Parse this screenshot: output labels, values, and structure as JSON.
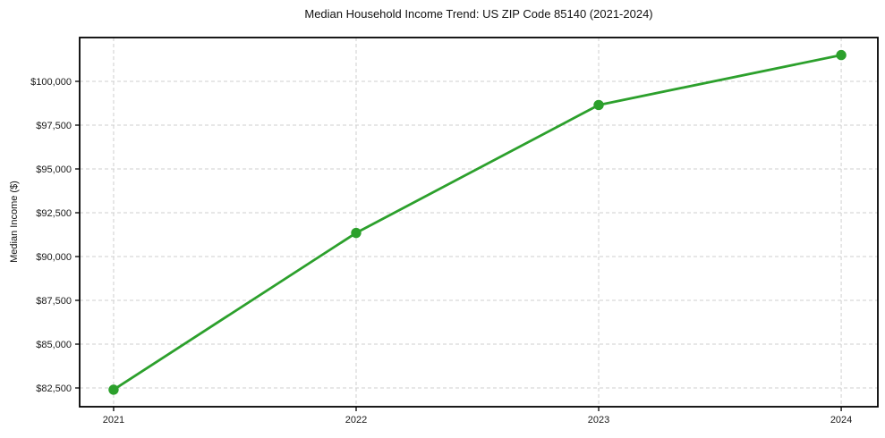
{
  "chart_data": {
    "type": "line",
    "title": "Median Household Income Trend: US ZIP Code 85140 (2021-2024)",
    "xlabel": "",
    "ylabel": "Median Income ($)",
    "x": [
      2021,
      2022,
      2023,
      2024
    ],
    "xtick_labels": [
      "2021",
      "2022",
      "2023",
      "2024"
    ],
    "ytick_values": [
      82500,
      85000,
      87500,
      90000,
      92500,
      95000,
      97500,
      100000
    ],
    "ytick_labels": [
      "$82,500",
      "$85,000",
      "$87,500",
      "$90,000",
      "$92,500",
      "$95,000",
      "$97,500",
      "$100,000"
    ],
    "series": [
      {
        "name": "Median Household Income",
        "values": [
          82400,
          91350,
          98650,
          101500
        ],
        "color": "#2ca02c"
      }
    ],
    "xlim": [
      2020.86,
      2024.151
    ],
    "ylim": [
      81429,
      102500
    ],
    "grid": true,
    "grid_color": "#cfcfcf",
    "spine_color": "#000000",
    "tick_label_color": "#1a1a1a",
    "legend": "none"
  }
}
